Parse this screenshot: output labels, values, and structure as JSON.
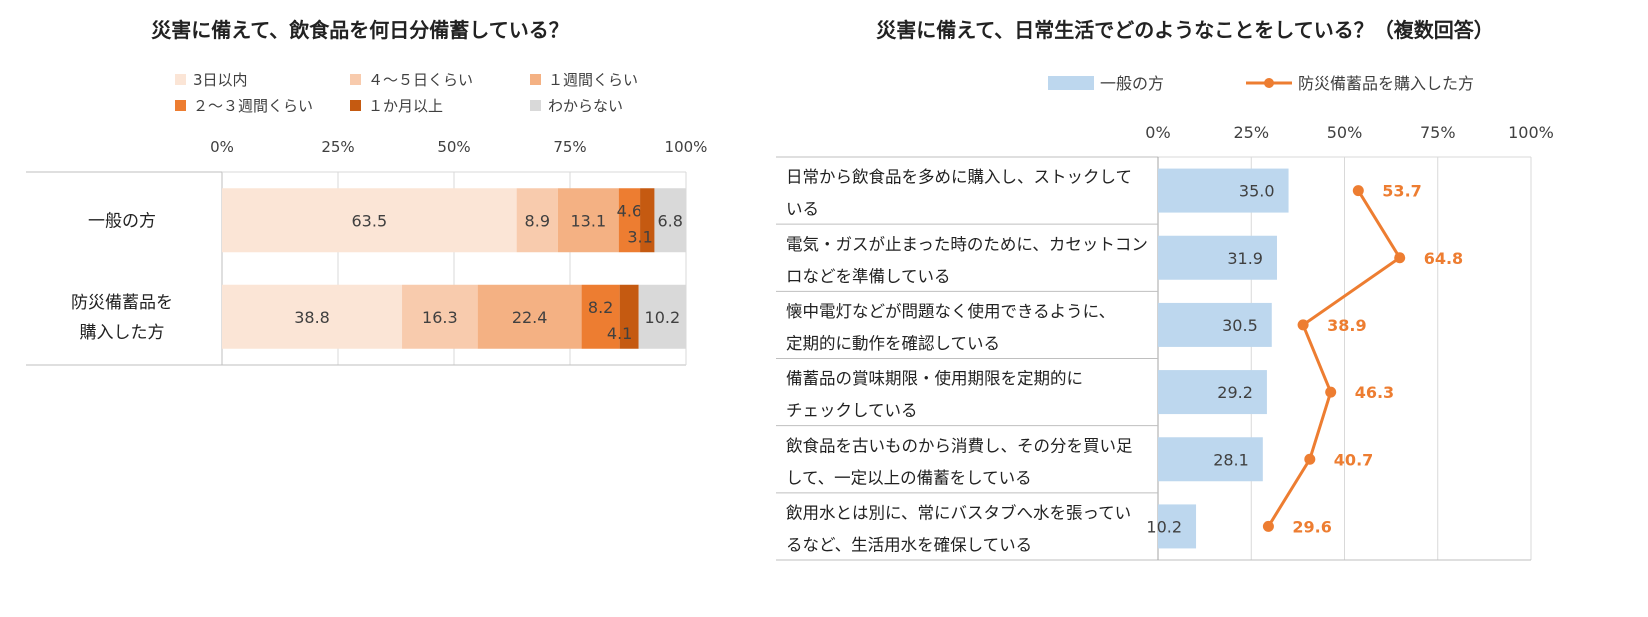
{
  "chart_data": [
    {
      "type": "bar",
      "orientation": "horizontal",
      "stacked": true,
      "title": "災害に備えて、飲食品を何日分備蓄している？",
      "categories": [
        "一般の方",
        "防災備蓄品を\n購入した方"
      ],
      "series": [
        {
          "name": "3日以内",
          "color": "#fbe5d6",
          "values": [
            63.5,
            38.8
          ]
        },
        {
          "name": "４～５日くらい",
          "color": "#f8cbad",
          "values": [
            8.9,
            16.3
          ]
        },
        {
          "name": "１週間くらい",
          "color": "#f4b183",
          "values": [
            13.1,
            22.4
          ]
        },
        {
          "name": "２～３週間くらい",
          "color": "#ed7d31",
          "values": [
            4.6,
            8.2
          ]
        },
        {
          "name": "１か月以上",
          "color": "#c55a11",
          "values": [
            3.1,
            4.1
          ]
        },
        {
          "name": "わからない",
          "color": "#d9d9d9",
          "values": [
            6.8,
            10.2
          ]
        }
      ],
      "xlim": [
        0,
        100
      ],
      "ticks": [
        "0%",
        "25%",
        "50%",
        "75%",
        "100%"
      ],
      "grid": true,
      "legend": "top"
    },
    {
      "type": "bar",
      "orientation": "horizontal",
      "title": "災害に備えて、日常生活でどのようなことをしている？（複数回答）",
      "categories": [
        "日常から飲食品を多めに購入し、ストックしている",
        "電気・ガスが止まった時のために、カセットコンロなどを準備している",
        "懐中電灯などが問題なく使用できるように、定期的に動作を確認している",
        "備蓄品の賞味期限・使用期限を定期的にチェックしている",
        "飲食品を古いものから消費し、その分を買い足して、一定以上の備蓄をしている",
        "飲用水とは別に、常にバスタブへ水を張っているなど、生活用水を確保している"
      ],
      "category_lines": [
        [
          "日常から飲食品を多めに購入し、ストックして",
          "いる"
        ],
        [
          "電気・ガスが止まった時のために、カセットコン",
          "ロなどを準備している"
        ],
        [
          "懐中電灯などが問題なく使用できるように、",
          "定期的に動作を確認している"
        ],
        [
          "備蓄品の賞味期限・使用期限を定期的に",
          "チェックしている"
        ],
        [
          "飲食品を古いものから消費し、その分を買い足",
          "して、一定以上の備蓄をしている"
        ],
        [
          "飲用水とは別に、常にバスタブへ水を張ってい",
          "るなど、生活用水を確保している"
        ]
      ],
      "series": [
        {
          "name": "一般の方",
          "kind": "bar",
          "color": "#bdd7ee",
          "values": [
            35.0,
            31.9,
            30.5,
            29.2,
            28.1,
            10.2
          ]
        },
        {
          "name": "防災備蓄品を購入した方",
          "kind": "line",
          "color": "#ed7d31",
          "values": [
            53.7,
            64.8,
            38.9,
            46.3,
            40.7,
            29.6
          ]
        }
      ],
      "xlim": [
        0,
        100
      ],
      "ticks": [
        "0%",
        "25%",
        "50%",
        "75%",
        "100%"
      ],
      "grid": true,
      "legend": "top"
    }
  ]
}
